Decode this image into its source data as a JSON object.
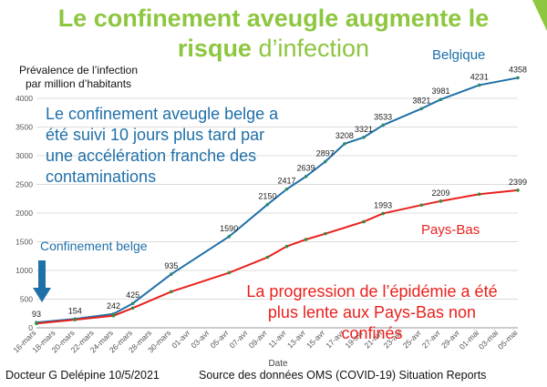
{
  "slide": {
    "title_bold_1": "Le confinement aveugle augmente le",
    "title_bold_2": "risque",
    "title_normal": "d’infection",
    "y_axis_label_line1": "Prévalence de l’infection",
    "y_axis_label_line2": "par million d’habitants",
    "annotation_blue": "Le confinement aveugle belge a été suivi 10 jours plus tard par une accélération  franche des contaminations",
    "annotation_red": "La progression de l’épidémie a été plus lente aux Pays-Bas non confinés",
    "confinement_label": "Confinement belge",
    "footer_author": "Docteur G Delépine 10/5/2021",
    "footer_source": "Source des données OMS (COVID-19) Situation Reports",
    "colors": {
      "title": "#8dc63f",
      "belgique": "#1f6fa8",
      "paysbas": "#e8211d",
      "arrow": "#1f6fa8"
    }
  },
  "chart_data": {
    "type": "line",
    "xlabel": "Date",
    "ylabel": "Prévalence de l’infection par million d’habitants",
    "ylim": [
      0,
      4000
    ],
    "yticks": [
      0,
      500,
      1000,
      1500,
      2000,
      2500,
      3000,
      3500,
      4000
    ],
    "categories": [
      "16-mars",
      "18-mars",
      "20-mars",
      "22-mars",
      "24-mars",
      "26-mars",
      "28-mars",
      "30-mars",
      "01-avr",
      "03-avr",
      "05-avr",
      "07-avr",
      "09-avr",
      "11-avr",
      "13-avr",
      "15-avr",
      "17-avr",
      "19-avr",
      "21-avr",
      "23-avr",
      "25-avr",
      "27-avr",
      "29-avr",
      "01-mai",
      "03-mai",
      "05-mai"
    ],
    "grid": true,
    "series": [
      {
        "name": "Belgique",
        "x": [
          "16-mars",
          "20-mars",
          "24-mars",
          "26-mars",
          "30-mars",
          "05-avr",
          "09-avr",
          "11-avr",
          "13-avr",
          "15-avr",
          "17-avr",
          "19-avr",
          "21-avr",
          "25-avr",
          "27-avr",
          "01-mai",
          "05-mai"
        ],
        "values": [
          93,
          154,
          242,
          425,
          935,
          1590,
          2150,
          2417,
          2639,
          2897,
          3208,
          3321,
          3533,
          3821,
          3981,
          4231,
          4358
        ],
        "labels": [
          "93",
          "154",
          "242",
          "425",
          "935",
          "1590",
          "2150",
          "2417",
          "2639",
          "2897",
          "3208",
          "3321",
          "3533",
          "3821",
          "3981",
          "4231",
          "4358"
        ]
      },
      {
        "name": "Pays-Bas",
        "x": [
          "16-mars",
          "20-mars",
          "24-mars",
          "26-mars",
          "30-mars",
          "05-avr",
          "09-avr",
          "11-avr",
          "13-avr",
          "15-avr",
          "19-avr",
          "21-avr",
          "25-avr",
          "27-avr",
          "01-mai",
          "05-mai"
        ],
        "values": [
          75,
          140,
          210,
          345,
          630,
          960,
          1230,
          1420,
          1540,
          1640,
          1850,
          1993,
          2140,
          2209,
          2330,
          2399
        ],
        "labels": [
          "",
          "",
          "",
          "",
          "",
          "",
          "",
          "",
          "",
          "",
          "",
          "1993",
          "",
          "2209",
          "",
          "2399"
        ]
      }
    ]
  }
}
